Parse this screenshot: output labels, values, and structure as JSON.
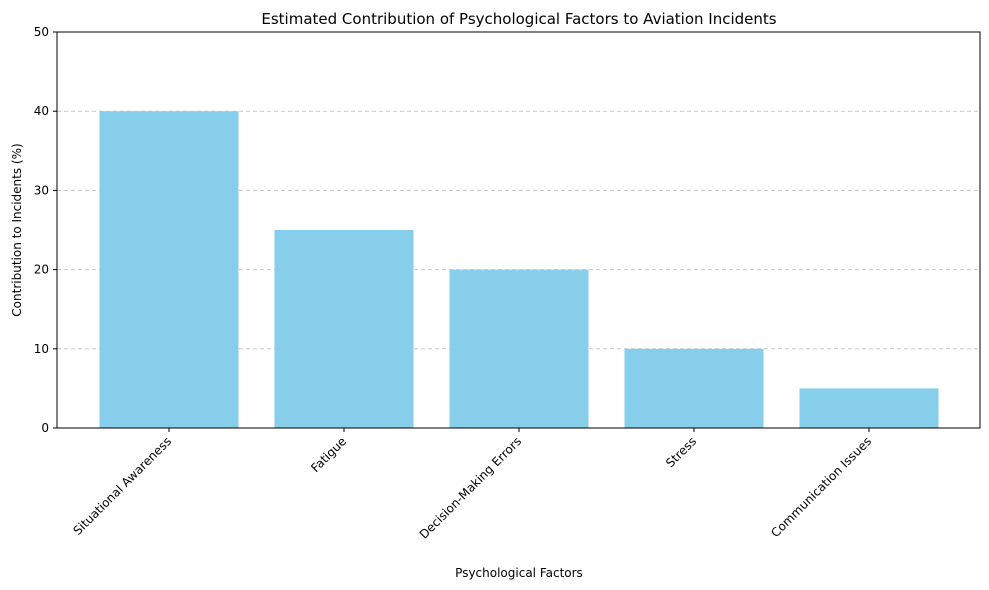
{
  "chart_data": {
    "type": "bar",
    "title": "Estimated Contribution of Psychological Factors to Aviation Incidents",
    "xlabel": "Psychological Factors",
    "ylabel": "Contribution to Incidents (%)",
    "categories": [
      "Situational Awareness",
      "Fatigue",
      "Decision-Making Errors",
      "Stress",
      "Communication Issues"
    ],
    "values": [
      40,
      25,
      20,
      10,
      5
    ],
    "ylim": [
      0,
      50
    ],
    "yticks": [
      "0",
      "10",
      "20",
      "30",
      "40",
      "50"
    ],
    "grid": "y-dashed",
    "bar_color": "#87CEEB"
  }
}
